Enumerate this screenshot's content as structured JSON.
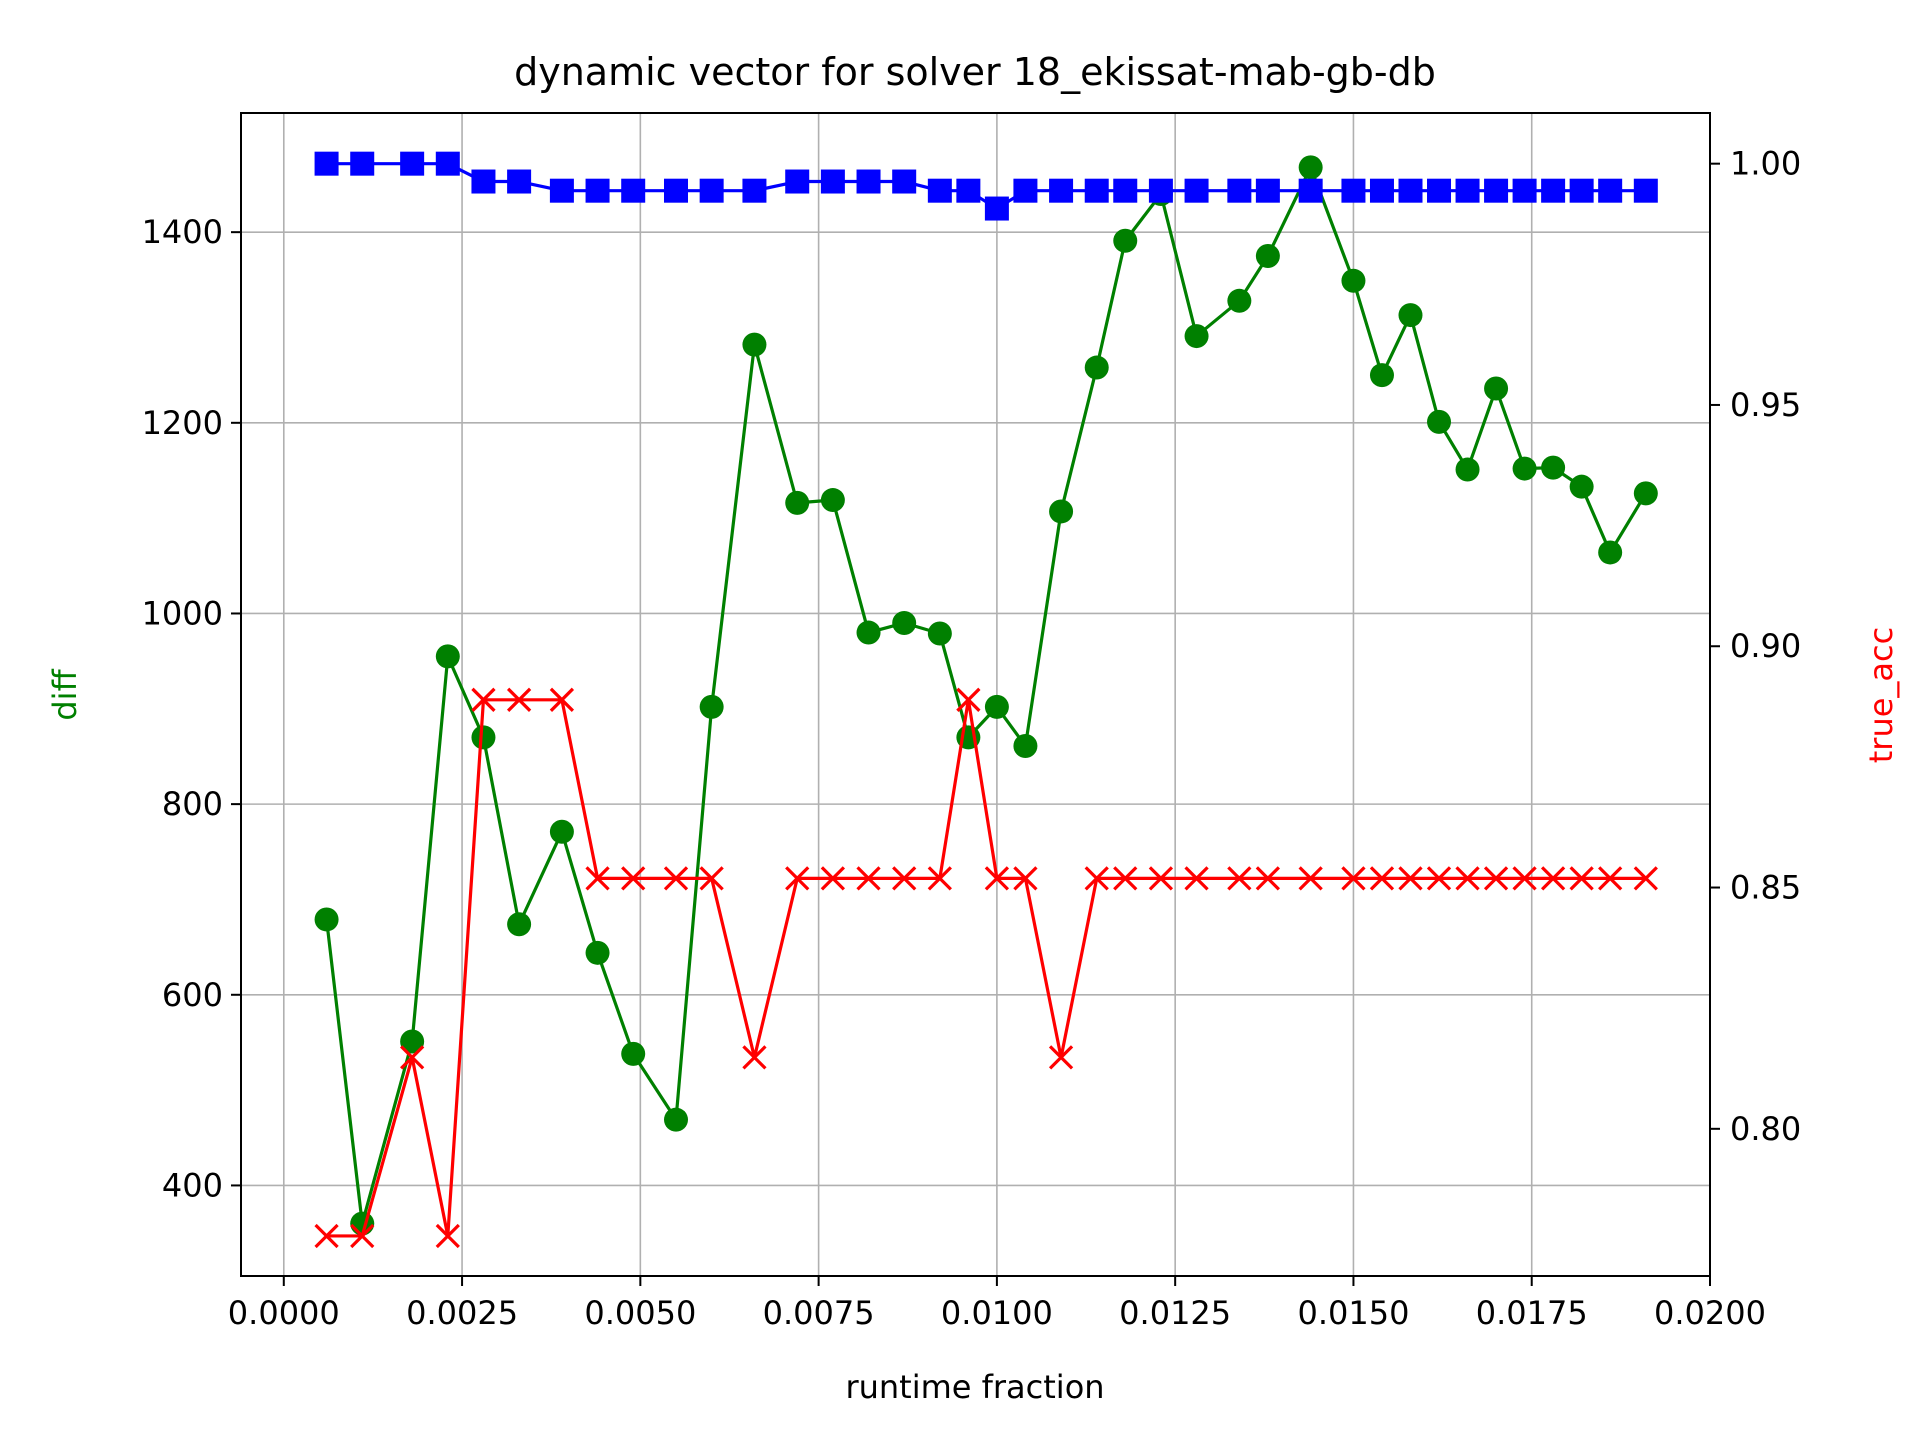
{
  "chart_data": {
    "type": "line",
    "title": "dynamic vector for solver 18_ekissat-mab-gb-db",
    "xlabel": "runtime fraction",
    "ylabel_left": "diff",
    "ylabel_right": "true_acc",
    "ylabel_left_color": "#008000",
    "ylabel_right_color": "#ff0000",
    "xlim": [
      -0.0006,
      0.02
    ],
    "ylim_left": [
      305,
      1525
    ],
    "ylim_right": [
      0.7695,
      1.0105
    ],
    "xticks": [
      "0.0000",
      "0.0025",
      "0.0050",
      "0.0075",
      "0.0100",
      "0.0125",
      "0.0150",
      "0.0175",
      "0.0200"
    ],
    "xtick_values": [
      0,
      0.0025,
      0.005,
      0.0075,
      0.01,
      0.0125,
      0.015,
      0.0175,
      0.02
    ],
    "yticks_left": [
      "400",
      "600",
      "800",
      "1000",
      "1200",
      "1400"
    ],
    "ytick_left_values": [
      400,
      600,
      800,
      1000,
      1200,
      1400
    ],
    "yticks_right": [
      "0.80",
      "0.85",
      "0.90",
      "0.95",
      "1.00"
    ],
    "ytick_right_values": [
      0.8,
      0.85,
      0.9,
      0.95,
      1.0
    ],
    "grid": true,
    "x": [
      0.0006,
      0.0011,
      0.0018,
      0.0023,
      0.0028,
      0.0033,
      0.0039,
      0.0044,
      0.0049,
      0.0055,
      0.006,
      0.0066,
      0.0072,
      0.0077,
      0.0082,
      0.0087,
      0.0092,
      0.0096,
      0.01,
      0.0104,
      0.0109,
      0.0114,
      0.0118,
      0.0123,
      0.0128,
      0.0134,
      0.0138,
      0.0144,
      0.015,
      0.0154,
      0.0158,
      0.0162,
      0.0166,
      0.017,
      0.0174,
      0.0178,
      0.0182,
      0.0186,
      0.0191
    ],
    "series": [
      {
        "axis": "left",
        "color": "#008000",
        "marker": "circle",
        "values": [
          679,
          360,
          551,
          955,
          870,
          674,
          771,
          644,
          538,
          469,
          902,
          1282,
          1116,
          1119,
          980,
          990,
          979,
          870,
          902,
          861,
          1107,
          1258,
          1391,
          1440,
          1291,
          1328,
          1375,
          1468,
          1349,
          1250,
          1313,
          1201,
          1151,
          1236,
          1152,
          1153,
          1133,
          1064,
          1126
        ]
      },
      {
        "axis": "right",
        "color": "#0000ff",
        "marker": "square",
        "values": [
          1.0,
          1.0,
          1.0,
          1.0,
          0.9963,
          0.9963,
          0.9944,
          0.9944,
          0.9944,
          0.9944,
          0.9944,
          0.9944,
          0.9963,
          0.9963,
          0.9963,
          0.9963,
          0.9944,
          0.9944,
          0.9907,
          0.9944,
          0.9944,
          0.9944,
          0.9944,
          0.9944,
          0.9944,
          0.9944,
          0.9944,
          0.9944,
          0.9944,
          0.9944,
          0.9944,
          0.9944,
          0.9944,
          0.9944,
          0.9944,
          0.9944,
          0.9944,
          0.9944,
          0.9944
        ]
      },
      {
        "axis": "right",
        "color": "#ff0000",
        "marker": "x",
        "values": [
          0.7778,
          0.7778,
          0.8148,
          0.7778,
          0.8889,
          0.8889,
          0.8889,
          0.8519,
          0.8519,
          0.8519,
          0.8519,
          0.8148,
          0.8519,
          0.8519,
          0.8519,
          0.8519,
          0.8519,
          0.8889,
          0.8519,
          0.8519,
          0.8148,
          0.8519,
          0.8519,
          0.8519,
          0.8519,
          0.8519,
          0.8519,
          0.8519,
          0.8519,
          0.8519,
          0.8519,
          0.8519,
          0.8519,
          0.8519,
          0.8519,
          0.8519,
          0.8519,
          0.8519,
          0.8519
        ]
      }
    ]
  }
}
